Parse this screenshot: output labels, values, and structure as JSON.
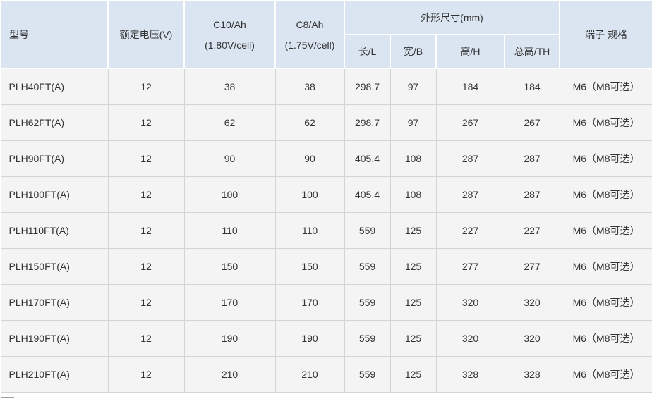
{
  "colors": {
    "header_bg": "#dbe5f1",
    "header_border": "#ffffff",
    "cell_bg": "#f4f4f4",
    "border": "#d4d4d4",
    "text": "#333333"
  },
  "table": {
    "headers": {
      "model": "型号",
      "voltage": "额定电压(V)",
      "c10_line1": "C10/Ah",
      "c10_line2": "(1.80V/cell)",
      "c8_line1": "C8/Ah",
      "c8_line2": "(1.75V/cell)",
      "dimensions_group": "外形尺寸(mm)",
      "dim_length": "长/L",
      "dim_width": "宽/B",
      "dim_height": "高/H",
      "dim_total_height": "总高/TH",
      "terminal": "端子 规格"
    },
    "rows": [
      {
        "model": "PLH40FT(A)",
        "voltage": "12",
        "c10": "38",
        "c8": "38",
        "length": "298.7",
        "width": "97",
        "height": "184",
        "total_height": "184",
        "terminal": "M6（M8可选）"
      },
      {
        "model": "PLH62FT(A)",
        "voltage": "12",
        "c10": "62",
        "c8": "62",
        "length": "298.7",
        "width": "97",
        "height": "267",
        "total_height": "267",
        "terminal": "M6（M8可选）"
      },
      {
        "model": "PLH90FT(A)",
        "voltage": "12",
        "c10": "90",
        "c8": "90",
        "length": "405.4",
        "width": "108",
        "height": "287",
        "total_height": "287",
        "terminal": "M6（M8可选）"
      },
      {
        "model": "PLH100FT(A)",
        "voltage": "12",
        "c10": "100",
        "c8": "100",
        "length": "405.4",
        "width": "108",
        "height": "287",
        "total_height": "287",
        "terminal": "M6（M8可选）"
      },
      {
        "model": "PLH110FT(A)",
        "voltage": "12",
        "c10": "110",
        "c8": "110",
        "length": "559",
        "width": "125",
        "height": "227",
        "total_height": "227",
        "terminal": "M6（M8可选）"
      },
      {
        "model": "PLH150FT(A)",
        "voltage": "12",
        "c10": "150",
        "c8": "150",
        "length": "559",
        "width": "125",
        "height": "277",
        "total_height": "277",
        "terminal": "M6（M8可选）"
      },
      {
        "model": "PLH170FT(A)",
        "voltage": "12",
        "c10": "170",
        "c8": "170",
        "length": "559",
        "width": "125",
        "height": "320",
        "total_height": "320",
        "terminal": "M6（M8可选）"
      },
      {
        "model": "PLH190FT(A)",
        "voltage": "12",
        "c10": "190",
        "c8": "190",
        "length": "559",
        "width": "125",
        "height": "320",
        "total_height": "320",
        "terminal": "M6（M8可选）"
      },
      {
        "model": "PLH210FT(A)",
        "voltage": "12",
        "c10": "210",
        "c8": "210",
        "length": "559",
        "width": "125",
        "height": "328",
        "total_height": "328",
        "terminal": "M6（M8可选）"
      }
    ]
  }
}
